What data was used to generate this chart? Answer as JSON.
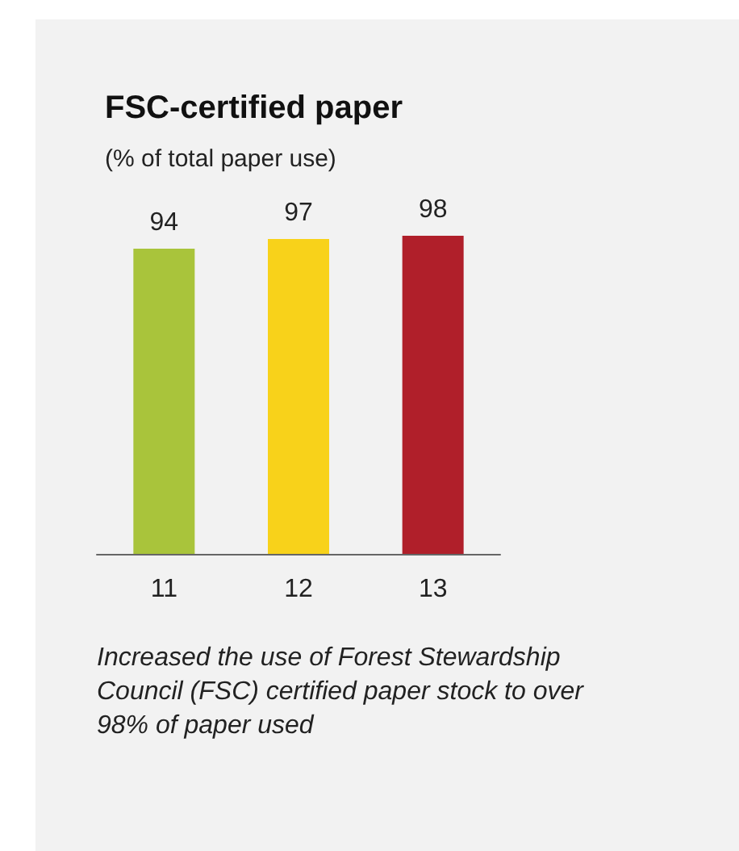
{
  "chart_data": {
    "type": "bar",
    "title": "FSC-certified paper",
    "subtitle": "(% of total paper use)",
    "categories": [
      "11",
      "12",
      "13"
    ],
    "values": [
      94,
      97,
      98
    ],
    "colors": [
      "#a9c43b",
      "#f8d21a",
      "#b01f2a"
    ],
    "data_labels": true,
    "annotations": [
      "Increased the use of Forest Stewardship Council (FSC) certified paper stock to over 98% of paper used"
    ]
  }
}
